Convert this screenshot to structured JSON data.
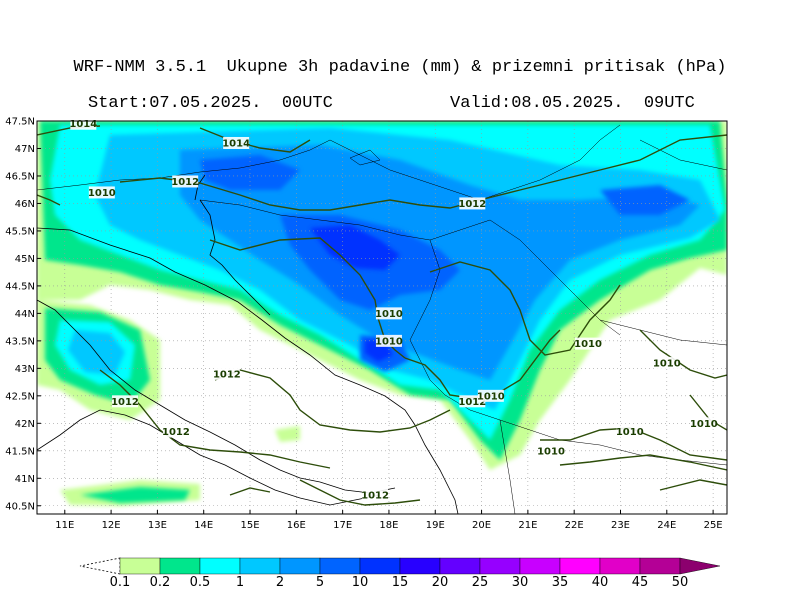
{
  "header": {
    "title": "WRF-NMM 3.5.1  Ukupne 3h padavine (mm) & prizemni pritisak (hPa)",
    "start": "Start:07.05.2025.  00UTC",
    "valid": "Valid:08.05.2025.  09UTC"
  },
  "map": {
    "lat_labels": [
      "47.5N",
      "47N",
      "46.5N",
      "46N",
      "45.5N",
      "45N",
      "44.5N",
      "44N",
      "43.5N",
      "43N",
      "42.5N",
      "42N",
      "41.5N",
      "41N",
      "40.5N"
    ],
    "lon_labels": [
      "11E",
      "12E",
      "13E",
      "14E",
      "15E",
      "16E",
      "17E",
      "18E",
      "19E",
      "20E",
      "21E",
      "22E",
      "23E",
      "24E",
      "25E"
    ],
    "isobar_labels": [
      {
        "text": "1014",
        "lon": 11.4,
        "lat": 47.45
      },
      {
        "text": "1014",
        "lon": 14.7,
        "lat": 47.1
      },
      {
        "text": "1010",
        "lon": 11.8,
        "lat": 46.2
      },
      {
        "text": "1012",
        "lon": 13.6,
        "lat": 46.4
      },
      {
        "text": "1012",
        "lon": 19.8,
        "lat": 46.0
      },
      {
        "text": "1010",
        "lon": 18.0,
        "lat": 44.0
      },
      {
        "text": "1010",
        "lon": 18.0,
        "lat": 43.5
      },
      {
        "text": "1010",
        "lon": 22.3,
        "lat": 43.45
      },
      {
        "text": "1010",
        "lon": 24.0,
        "lat": 43.1
      },
      {
        "text": "1012",
        "lon": 14.5,
        "lat": 42.9
      },
      {
        "text": "1012",
        "lon": 12.3,
        "lat": 42.4
      },
      {
        "text": "1012",
        "lon": 19.8,
        "lat": 42.4
      },
      {
        "text": "1010",
        "lon": 20.2,
        "lat": 42.5
      },
      {
        "text": "1012",
        "lon": 13.4,
        "lat": 41.85
      },
      {
        "text": "1010",
        "lon": 23.2,
        "lat": 41.85
      },
      {
        "text": "1010",
        "lon": 24.8,
        "lat": 42.0
      },
      {
        "text": "1010",
        "lon": 21.5,
        "lat": 41.5
      },
      {
        "text": "1012",
        "lon": 17.7,
        "lat": 40.7
      }
    ]
  },
  "colorbar": {
    "colors": [
      "#c8ff96",
      "#00e68c",
      "#00ffff",
      "#00c8ff",
      "#0096ff",
      "#0064ff",
      "#0032ff",
      "#2800ff",
      "#6400ff",
      "#9600ff",
      "#c800ff",
      "#ff00ff",
      "#e100c8",
      "#b40096",
      "#8c006e"
    ],
    "labels": [
      "0.1",
      "0.2",
      "0.5",
      "1",
      "2",
      "5",
      "10",
      "15",
      "20",
      "25",
      "30",
      "35",
      "40",
      "45",
      "50"
    ]
  },
  "colors": {
    "isobar": "#2d4d0a",
    "coast": "#000000"
  }
}
